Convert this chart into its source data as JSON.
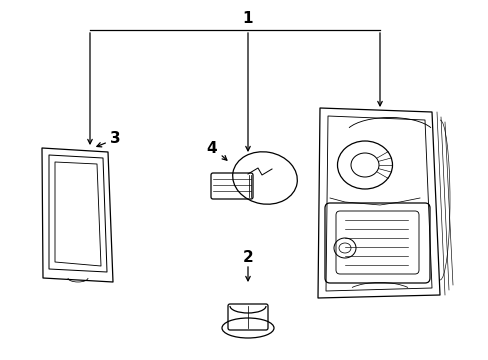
{
  "bg_color": "#ffffff",
  "line_color": "#000000",
  "text_color": "#000000",
  "fig_width": 4.89,
  "fig_height": 3.6,
  "dpi": 100,
  "label1": "1",
  "label2": "2",
  "label3": "3",
  "label4": "4"
}
